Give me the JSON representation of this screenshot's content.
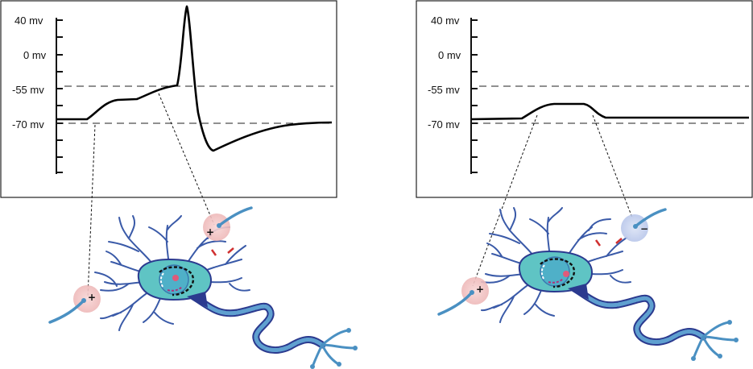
{
  "panels": [
    {
      "id": "excitatory-summation",
      "y_tick_labels": [
        "40 mv",
        "0 mv",
        "-55 mv",
        "-70 mv"
      ],
      "synapse_signs": [
        "+",
        "+"
      ]
    },
    {
      "id": "excitatory-inhibitory",
      "y_tick_labels": [
        "40 mv",
        "0 mv",
        "-55 mv",
        "-70 mv"
      ],
      "synapse_signs": [
        "+",
        "−"
      ]
    }
  ],
  "colors": {
    "trace": "#000000",
    "neuron_body": "#5fc4c4",
    "neuron_outline": "#2b3a8f",
    "axon": "#3f7fbf",
    "dendrite": "#3a5aa8",
    "nucleus_dot": "#e05a7a",
    "excitatory_bubble": "#f4c9c9",
    "inhibitory_bubble": "#c9d4ee",
    "presynaptic": "#4a90c2"
  }
}
